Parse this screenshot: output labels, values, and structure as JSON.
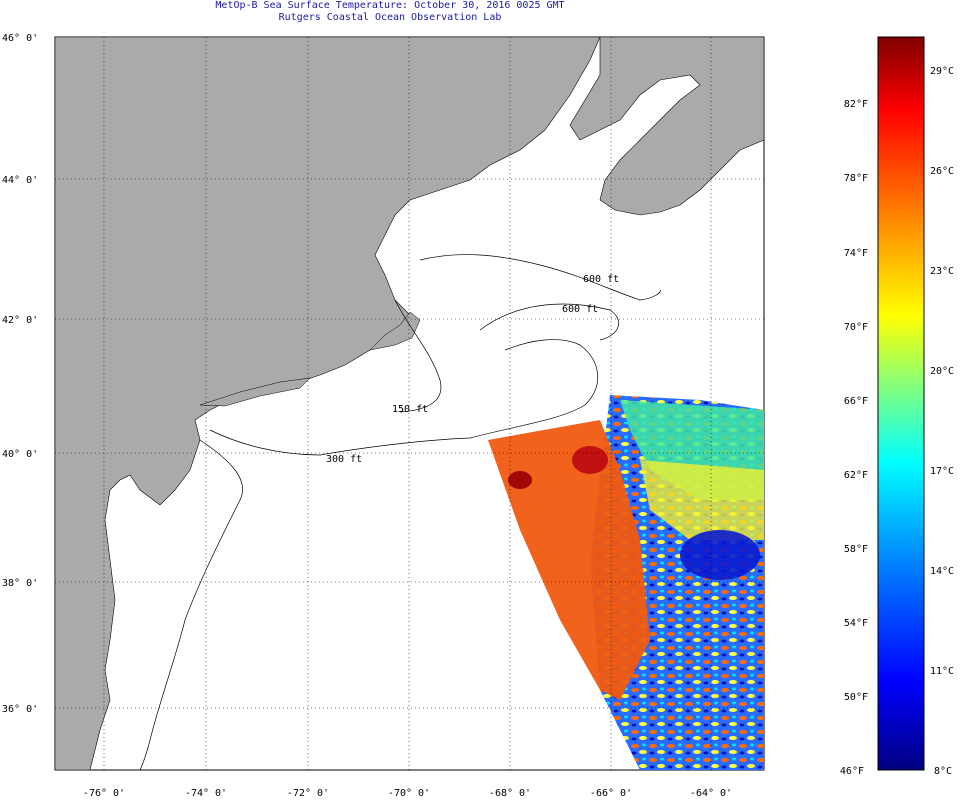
{
  "title": {
    "line1": "MetOp-B Sea Surface Temperature:  October 30, 2016 0025 GMT",
    "line2": "Rutgers Coastal Ocean Observation Lab"
  },
  "map": {
    "lat_labels": [
      "46° 0'",
      "44° 0'",
      "42° 0'",
      "40° 0'",
      "38° 0'",
      "36° 0'"
    ],
    "lon_labels": [
      "-76° 0'",
      "-74° 0'",
      "-72° 0'",
      "-70° 0'",
      "-68° 0'",
      "-66° 0'",
      "-64° 0'"
    ],
    "isobaths": [
      {
        "label": "600 ft"
      },
      {
        "label": "600 ft"
      },
      {
        "label": "150 ft"
      },
      {
        "label": "300 ft"
      }
    ],
    "land_color": "#aaaaaa",
    "ocean_color": "#ffffff"
  },
  "colorbar": {
    "fahrenheit": [
      "82°F",
      "78°F",
      "74°F",
      "70°F",
      "66°F",
      "62°F",
      "58°F",
      "54°F",
      "50°F",
      "46°F"
    ],
    "celsius": [
      "29°C",
      "26°C",
      "23°C",
      "20°C",
      "17°C",
      "14°C",
      "11°C",
      "8°C"
    ],
    "colors": [
      "#000080",
      "#0000ff",
      "#0080ff",
      "#00ffff",
      "#80ff80",
      "#ffff00",
      "#ff8000",
      "#ff0000",
      "#800000"
    ]
  }
}
